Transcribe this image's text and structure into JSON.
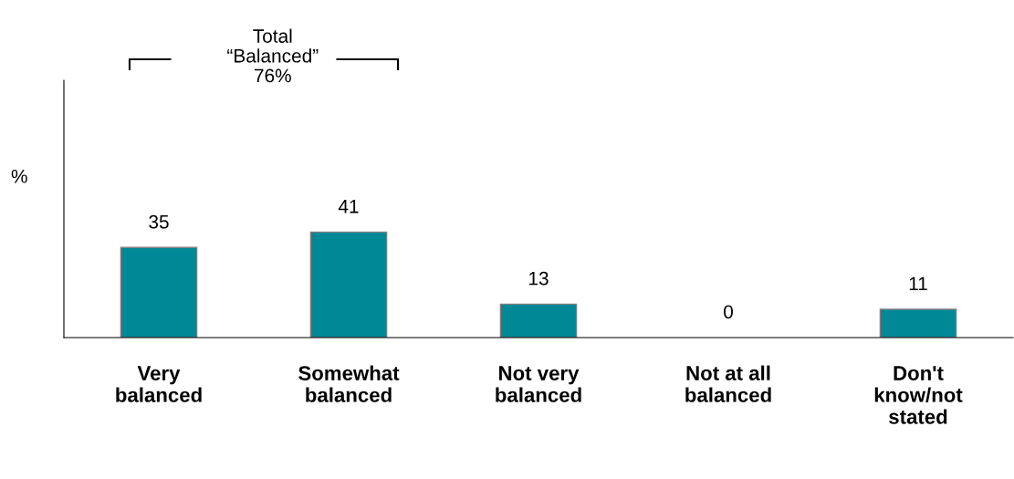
{
  "chart_data": {
    "type": "bar",
    "ylabel": "%",
    "categories": [
      "Very\nbalanced",
      "Somewhat\nbalanced",
      "Not very\nbalanced",
      "Not at all\nbalanced",
      "Don't\nknow/not\nstated"
    ],
    "values": [
      35,
      41,
      13,
      0,
      11
    ],
    "color": "#008897",
    "ylim": [
      0,
      100
    ],
    "tick_labels": "x",
    "data_labels": true,
    "grid": false,
    "legend": false,
    "annotations": [
      "Total\n“Balanced”\n76%"
    ]
  }
}
